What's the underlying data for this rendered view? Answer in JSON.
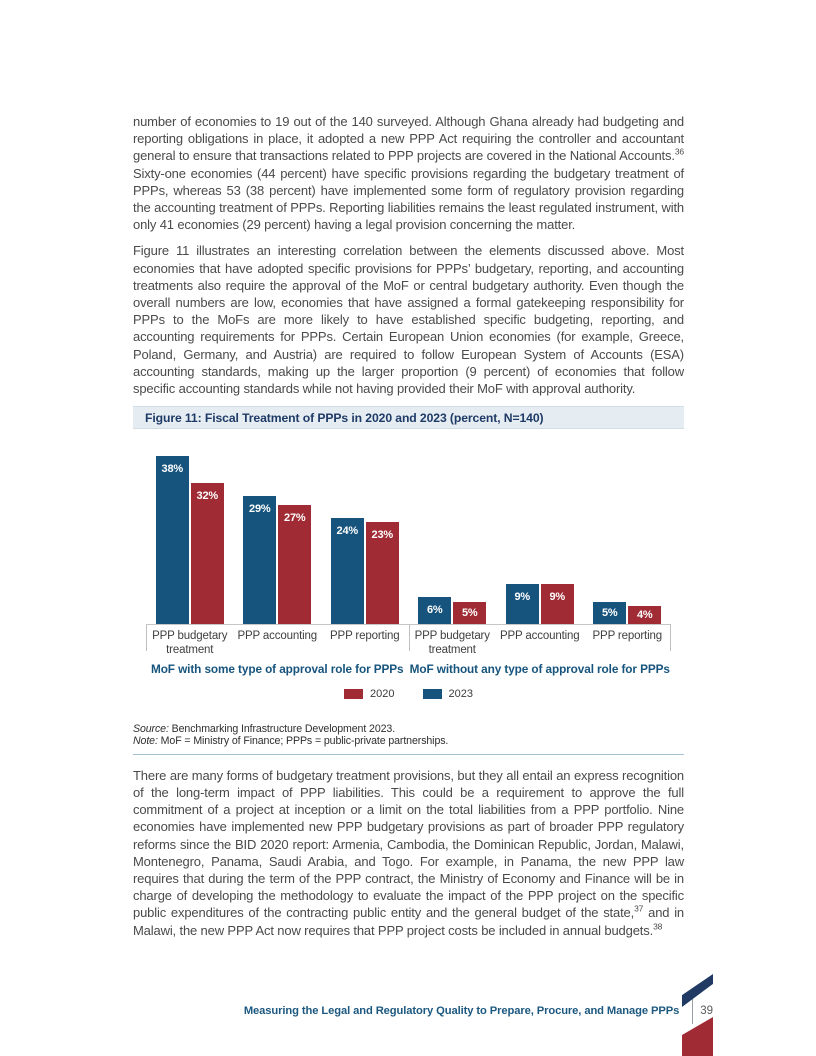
{
  "intro_paragraphs": [
    {
      "segments": [
        {
          "t": "number of economies to 19 out of the 140 surveyed. Although Ghana already had budgeting and reporting obligations in place, it adopted a new PPP Act requiring the controller and accountant general to ensure that transactions related to PPP projects are covered in the National Accounts."
        },
        {
          "sup": "36"
        },
        {
          "t": " Sixty-one economies (44 percent) have specific provisions regarding the budgetary treatment of PPPs, whereas 53 (38 percent) have implemented some form of regulatory provision regarding the accounting treatment of PPPs. Reporting liabilities remains the least regulated instrument, with only 41 economies (29 percent) having a legal provision concerning the matter."
        }
      ]
    },
    {
      "segments": [
        {
          "t": "Figure 11 illustrates an interesting correlation between the elements discussed above. Most economies that have adopted specific provisions for PPPs’ budgetary, reporting, and accounting treatments also require the approval of the MoF or central budgetary authority. Even though the overall numbers are low, economies that have assigned a formal gatekeeping responsibility for PPPs to the MoFs are more likely to have established specific budgeting, reporting, and accounting requirements for PPPs. Certain European Union economies (for example, Greece, Poland, Germany, and Austria) are required to follow European System of Accounts (ESA) accounting standards, making up the larger proportion (9 percent) of economies that follow specific accounting standards while not having provided their MoF with approval authority."
        }
      ]
    }
  ],
  "figure": {
    "title": "Figure 11: Fiscal Treatment of PPPs in 2020 and 2023 (percent, N=140)",
    "source_label": "Source:",
    "source_text": " Benchmarking Infrastructure Development 2023.",
    "note_label": "Note:",
    "note_text": " MoF = Ministry of Finance; PPPs = public-private partnerships."
  },
  "chart_data": {
    "type": "bar",
    "title": "Figure 11: Fiscal Treatment of PPPs in 2020 and 2023 (percent, N=140)",
    "unit": "percent",
    "n": 140,
    "ylim": [
      0,
      40
    ],
    "grid": false,
    "legend_position": "bottom-center",
    "value_label_suffix": "%",
    "groups": [
      {
        "label": "MoF with some type of approval role for PPPs",
        "categories": [
          "PPP budgetary treatment",
          "PPP accounting",
          "PPP reporting"
        ],
        "series": [
          {
            "name": "2023",
            "values": [
              38,
              29,
              24
            ]
          },
          {
            "name": "2020",
            "values": [
              32,
              27,
              23
            ]
          }
        ]
      },
      {
        "label": "MoF without any type of approval role for PPPs",
        "categories": [
          "PPP budgetary treatment",
          "PPP accounting",
          "PPP reporting"
        ],
        "series": [
          {
            "name": "2023",
            "values": [
              6,
              9,
              5
            ]
          },
          {
            "name": "2020",
            "values": [
              5,
              9,
              4
            ]
          }
        ]
      }
    ],
    "legend": [
      {
        "label": "2020",
        "color": "#a02b34"
      },
      {
        "label": "2023",
        "color": "#17547d"
      }
    ]
  },
  "closing_paragraphs": [
    {
      "segments": [
        {
          "t": "There are many forms of budgetary treatment provisions, but they all entail an express recognition of the long-term impact of PPP liabilities. This could be a requirement to approve the full commitment of a project at inception or a limit on the total liabilities from a PPP portfolio. Nine economies have implemented new PPP budgetary provisions as part of broader PPP regulatory reforms since the BID 2020 report: Armenia, Cambodia, the Dominican Republic, Jordan, Malawi, Montenegro, Panama, Saudi Arabia, and Togo. For example, in Panama, the new PPP law requires that during the term of the PPP contract, the Ministry of Economy and Finance will be in charge of developing the methodology to evaluate the impact of the PPP project on the specific public expenditures of the contracting public entity and the general budget of the state,"
        },
        {
          "sup": "37"
        },
        {
          "t": " and in Malawi, the new PPP Act now requires that PPP project costs be included in annual budgets."
        },
        {
          "sup": "38"
        }
      ]
    }
  ],
  "footer": {
    "text": "Measuring the Legal and Regulatory Quality to Prepare, Procure, and Manage PPPs",
    "page_number": "39"
  },
  "colors": {
    "bar_2023": "#17547d",
    "bar_2020": "#a02b34",
    "figure_title_bg": "#e6edf2",
    "figure_title_text": "#1e3a66",
    "group_label_text": "#17547d",
    "footer_text": "#1c587f",
    "corner_navy": "#203a64",
    "corner_red": "#a02b34"
  }
}
